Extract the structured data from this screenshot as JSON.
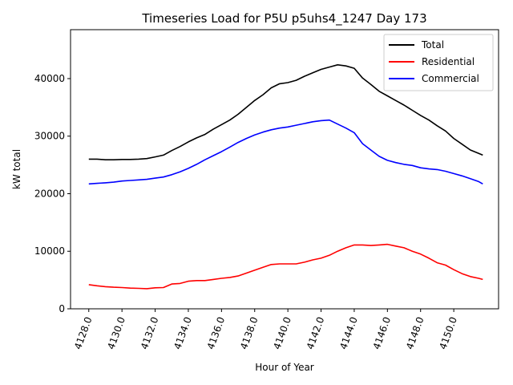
{
  "chart_data": {
    "type": "line",
    "title": "Timeseries Load for P5U p5uhs4_1247  Day 173",
    "xlabel": "Hour of Year",
    "ylabel": "kW total",
    "xlim": [
      4126.9,
      4152.7
    ],
    "ylim": [
      0,
      48500
    ],
    "x_ticks": [
      4128,
      4130,
      4132,
      4134,
      4136,
      4138,
      4140,
      4142,
      4144,
      4146,
      4148,
      4150
    ],
    "x_tick_labels": [
      "4128.0",
      "4130.0",
      "4132.0",
      "4134.0",
      "4136.0",
      "4138.0",
      "4140.0",
      "4142.0",
      "4144.0",
      "4146.0",
      "4148.0",
      "4150.0"
    ],
    "y_ticks": [
      0,
      10000,
      20000,
      30000,
      40000
    ],
    "y_tick_labels": [
      "0",
      "10000",
      "20000",
      "30000",
      "40000"
    ],
    "legend_position": "top-right",
    "x": [
      4128,
      4128.5,
      4129,
      4129.5,
      4130,
      4130.5,
      4131,
      4131.5,
      4132,
      4132.5,
      4133,
      4133.5,
      4134,
      4134.5,
      4135,
      4135.5,
      4136,
      4136.5,
      4137,
      4137.5,
      4138,
      4138.5,
      4139,
      4139.5,
      4140,
      4140.5,
      4141,
      4141.5,
      4142,
      4142.5,
      4143,
      4143.5,
      4144,
      4144.5,
      4145,
      4145.5,
      4146,
      4146.5,
      4147,
      4147.5,
      4148,
      4148.5,
      4149,
      4149.5,
      4150,
      4150.5,
      4151,
      4151.5,
      4151.75
    ],
    "series": [
      {
        "name": "Total",
        "color": "#000000",
        "values": [
          26000,
          26000,
          25900,
          25900,
          25950,
          25950,
          26000,
          26100,
          26400,
          26700,
          27500,
          28200,
          29000,
          29700,
          30300,
          31200,
          32000,
          32800,
          33800,
          35000,
          36200,
          37200,
          38400,
          39100,
          39300,
          39700,
          40400,
          41000,
          41600,
          42000,
          42400,
          42200,
          41800,
          40100,
          39000,
          37800,
          37000,
          36200,
          35400,
          34500,
          33600,
          32800,
          31800,
          30900,
          29600,
          28600,
          27600,
          27000,
          26700
        ]
      },
      {
        "name": "Residential",
        "color": "#ff0000",
        "values": [
          4200,
          4000,
          3850,
          3750,
          3700,
          3600,
          3550,
          3500,
          3650,
          3700,
          4300,
          4400,
          4800,
          4900,
          4900,
          5100,
          5300,
          5450,
          5700,
          6200,
          6700,
          7200,
          7700,
          7800,
          7800,
          7800,
          8100,
          8500,
          8800,
          9300,
          10000,
          10600,
          11100,
          11100,
          11000,
          11100,
          11200,
          10900,
          10600,
          10000,
          9500,
          8800,
          8000,
          7600,
          6800,
          6100,
          5600,
          5300,
          5100
        ]
      },
      {
        "name": "Commercial",
        "color": "#0000ff",
        "values": [
          21700,
          21800,
          21900,
          22000,
          22200,
          22300,
          22400,
          22500,
          22700,
          22900,
          23300,
          23800,
          24400,
          25100,
          25900,
          26600,
          27300,
          28100,
          28900,
          29600,
          30200,
          30700,
          31100,
          31400,
          31600,
          31900,
          32200,
          32500,
          32700,
          32800,
          32100,
          31400,
          30600,
          28700,
          27600,
          26500,
          25800,
          25400,
          25100,
          24900,
          24500,
          24300,
          24200,
          23900,
          23500,
          23100,
          22600,
          22100,
          21700
        ]
      }
    ]
  }
}
